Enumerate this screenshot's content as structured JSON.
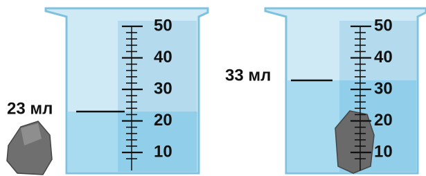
{
  "beakers": [
    {
      "level_label": "23 мл",
      "scale": [
        10,
        20,
        30,
        40,
        50
      ]
    },
    {
      "level_label": "33 мл",
      "scale": [
        10,
        20,
        30,
        40,
        50
      ]
    }
  ]
}
